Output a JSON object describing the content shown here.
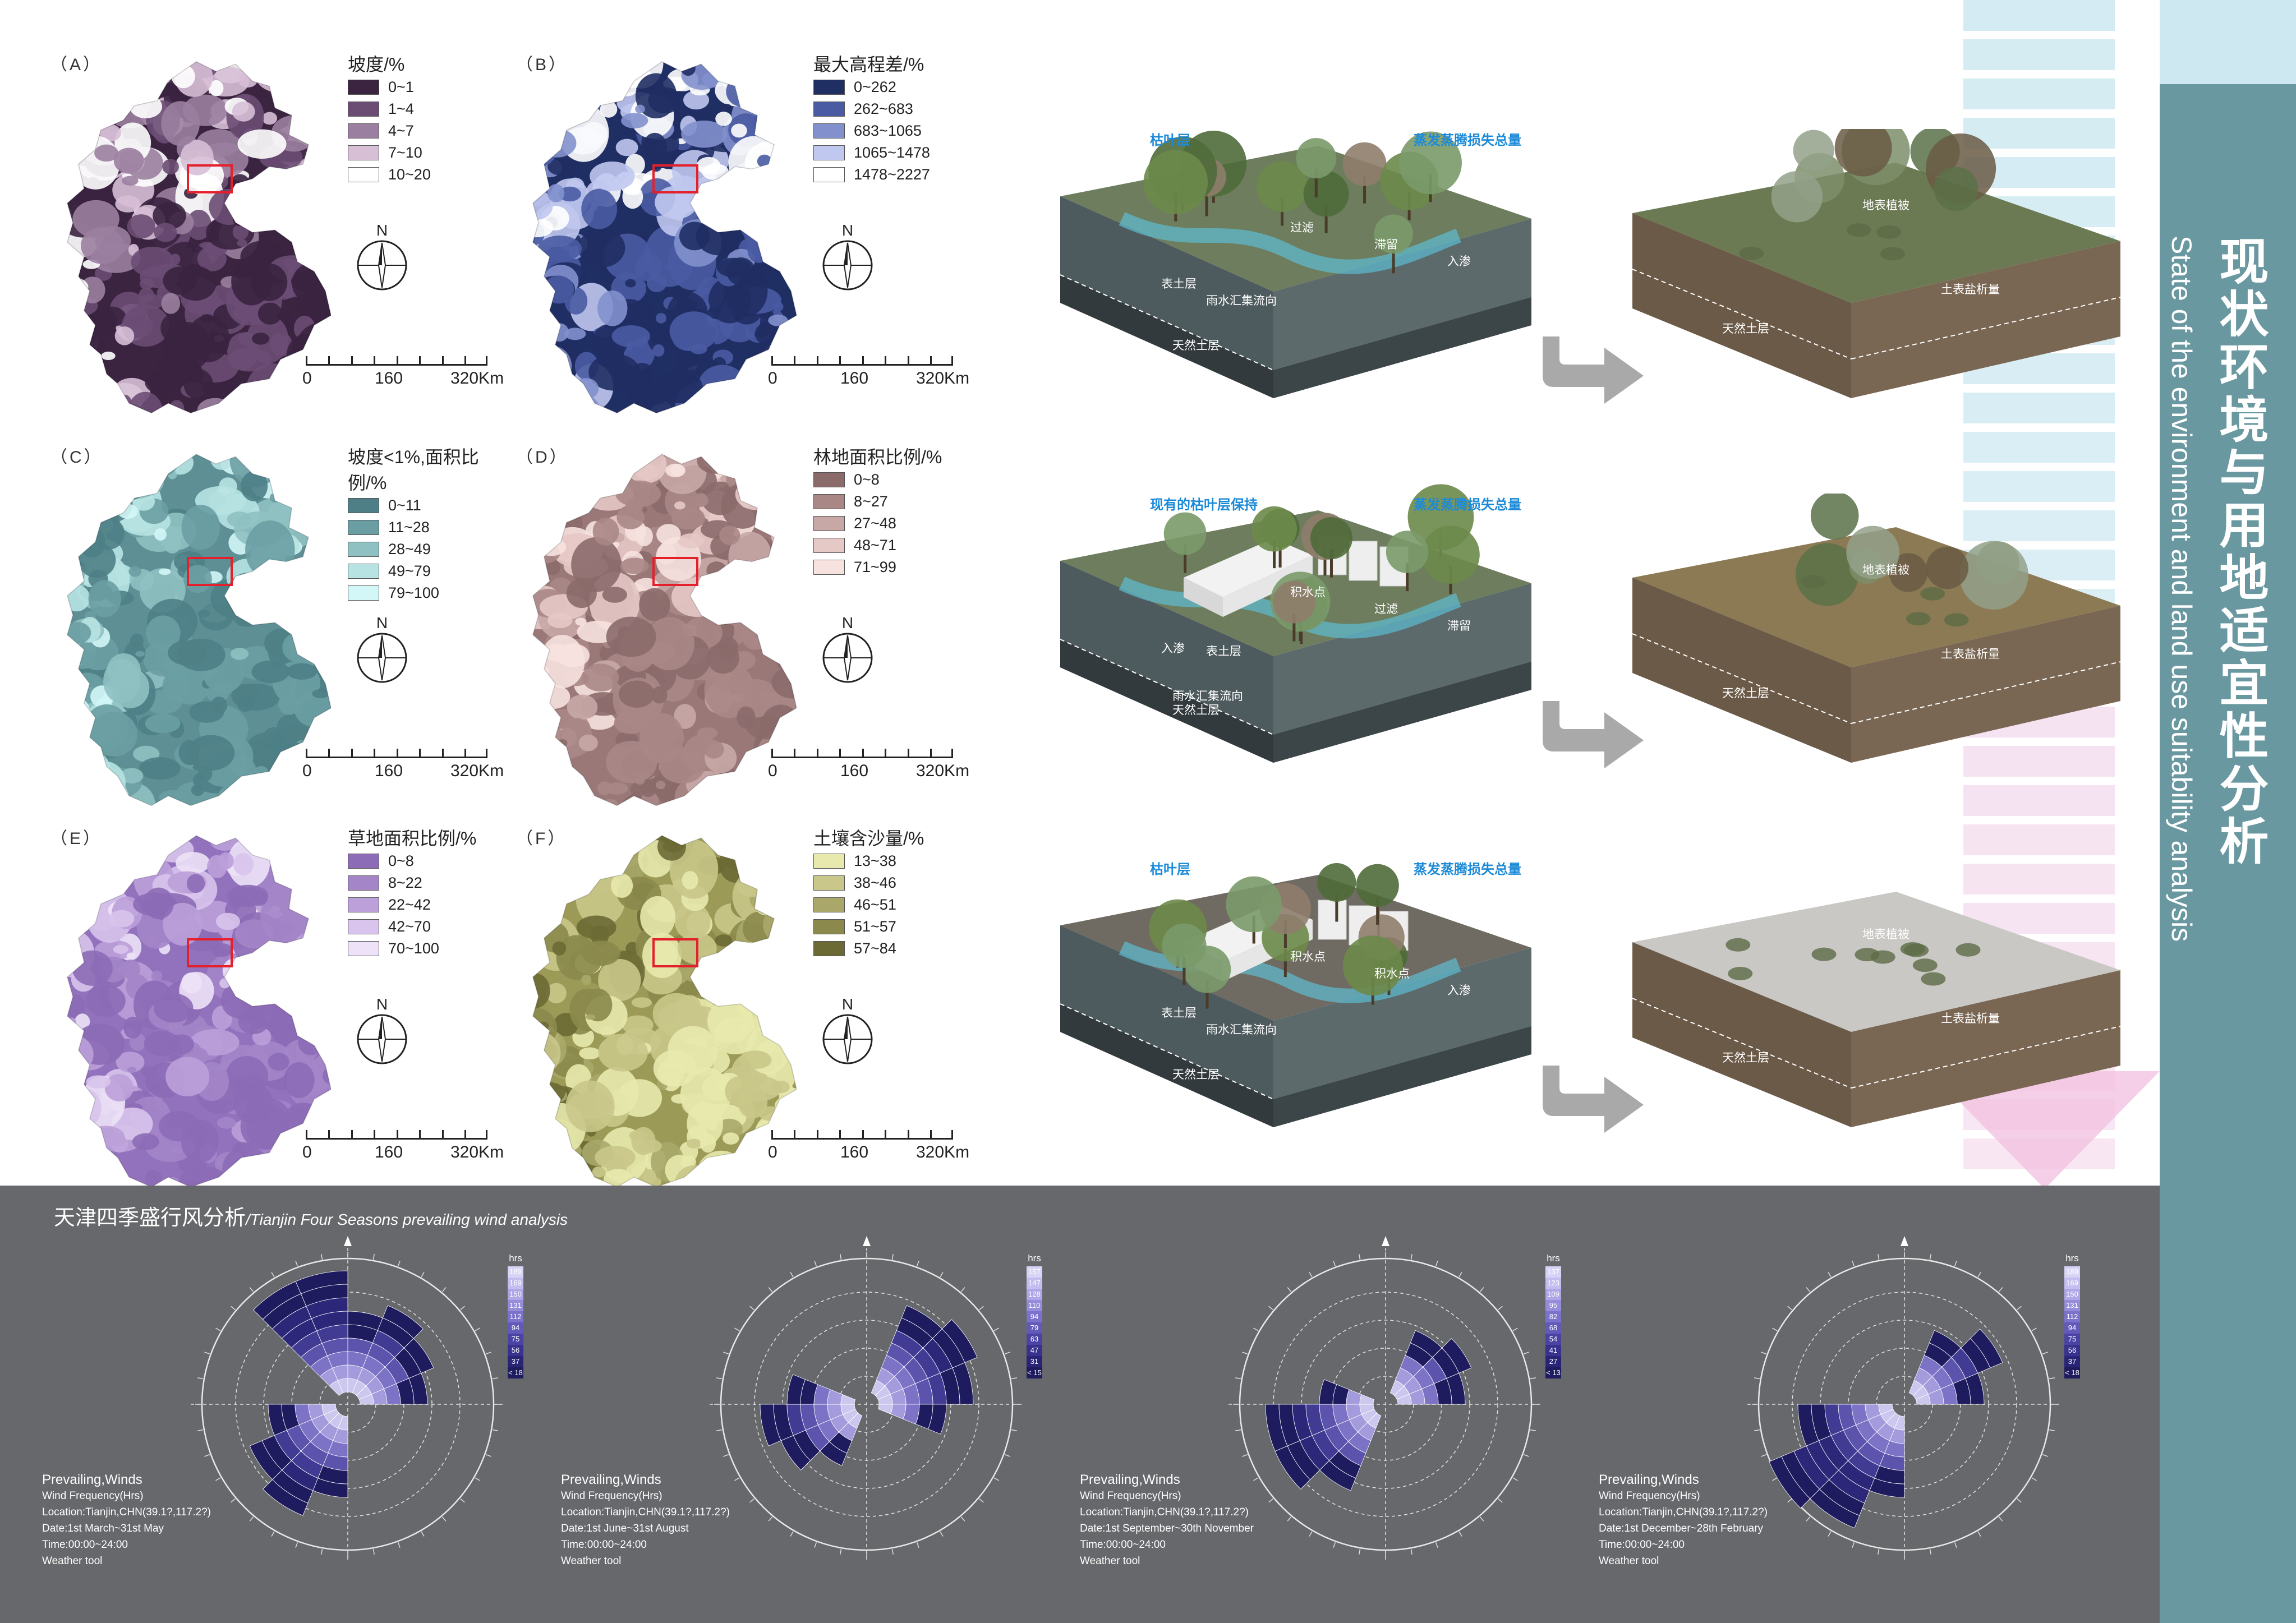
{
  "maps": [
    {
      "id": "A",
      "label": "（A）",
      "legend_title": "坡度/%",
      "classes": [
        "0~1",
        "1~4",
        "4~7",
        "7~10",
        "10~20"
      ],
      "colors": [
        "#3a2440",
        "#6b4d74",
        "#9b7fa0",
        "#d7bfd6",
        "#ffffff"
      ],
      "base": "#3a2440"
    },
    {
      "id": "B",
      "label": "（B）",
      "legend_title": "最大高程差/%",
      "classes": [
        "0~262",
        "262~683",
        "683~1065",
        "1065~1478",
        "1478~2227"
      ],
      "colors": [
        "#1f2e63",
        "#4a5ba3",
        "#8291cd",
        "#c0c8f0",
        "#ffffff"
      ],
      "base": "#1f2e63"
    },
    {
      "id": "C",
      "label": "（C）",
      "legend_title": "坡度<1%,面积比例/%",
      "classes": [
        "0~11",
        "11~28",
        "28~49",
        "49~79",
        "79~100"
      ],
      "colors": [
        "#4e7f86",
        "#6a9ea3",
        "#8fc1c2",
        "#b7e3e2",
        "#d3f6f7"
      ],
      "base": "#5d8f95"
    },
    {
      "id": "D",
      "label": "（D）",
      "legend_title": "林地面积比例/%",
      "classes": [
        "0~8",
        "8~27",
        "27~48",
        "48~71",
        "71~99"
      ],
      "colors": [
        "#8b6a6a",
        "#a88786",
        "#c8a8a6",
        "#e5c9c7",
        "#f7e2e0"
      ],
      "base": "#9a7878"
    },
    {
      "id": "E",
      "label": "（E）",
      "legend_title": "草地面积比例/%",
      "classes": [
        "0~8",
        "8~22",
        "22~42",
        "42~70",
        "70~100"
      ],
      "colors": [
        "#8c6cb6",
        "#a385c8",
        "#bba0d9",
        "#d8c4ec",
        "#ede2f7"
      ],
      "base": "#9272bd"
    },
    {
      "id": "F",
      "label": "（F）",
      "legend_title": "土壤含沙量/%",
      "classes": [
        "13~38",
        "38~46",
        "46~51",
        "51~57",
        "57~84"
      ],
      "colors": [
        "#e8e9ad",
        "#c9c88a",
        "#a9a86a",
        "#8b8a4c",
        "#6b6a35"
      ],
      "base": "#9c9a57"
    }
  ],
  "compass_letter": "N",
  "scale": [
    "0",
    "160",
    "320Km"
  ],
  "blocks": [
    {
      "left_labels": [
        "枯叶层",
        "蒸发蒸腾损失总量",
        "过滤",
        "滞留",
        "入渗",
        "表土层",
        "雨水汇集流向",
        "天然土层"
      ],
      "right_labels": [
        "地表植被",
        "天然土层",
        "土表盐析量"
      ]
    },
    {
      "left_labels": [
        "现有的枯叶层保持",
        "蒸发蒸腾损失总量",
        "积水点",
        "过滤",
        "滞留",
        "入渗",
        "表土层",
        "雨水汇集流向",
        "天然土层"
      ],
      "right_labels": [
        "地表植被",
        "天然土层",
        "土表盐析量"
      ]
    },
    {
      "left_labels": [
        "枯叶层",
        "蒸发蒸腾损失总量",
        "积水点",
        "积水点",
        "入渗",
        "表土层",
        "雨水汇集流向",
        "天然土层"
      ],
      "right_labels": [
        "地表植被",
        "天然土层",
        "土表盐析量"
      ]
    }
  ],
  "right_title": "现状环境与用地适宜性分析",
  "right_subtitle": "State of the environment and land use suitability analysis",
  "wind": {
    "title": "天津四季盛行风分析",
    "title_en": "/Tianjin Four Seasons prevailing wind analysis",
    "unit": "hrs",
    "roses": [
      {
        "heading": "Prevailing,Winds",
        "freq": "Wind Frequency(Hrs)",
        "loc": "Location:Tianjin,CHN(39.1?,117.2?)",
        "date": "Date:1st March~31st May",
        "time": "Time:00:00~24:00",
        "tool": "Weather tool",
        "scale": [
          "189",
          "169",
          "150",
          "131",
          "112",
          "94",
          "75",
          "56",
          "37",
          "< 18"
        ]
      },
      {
        "heading": "Prevailing,Winds",
        "freq": "Wind Frequency(Hrs)",
        "loc": "Location:Tianjin,CHN(39.1?,117.2?)",
        "date": "Date:1st June~31st August",
        "time": "Time:00:00~24:00",
        "tool": "Weather tool",
        "scale": [
          "157",
          "147",
          "128",
          "110",
          "94",
          "79",
          "63",
          "47",
          "31",
          "< 15"
        ]
      },
      {
        "heading": "Prevailing,Winds",
        "freq": "Wind Frequency(Hrs)",
        "loc": "Location:Tianjin,CHN(39.1?,117.2?)",
        "date": "Date:1st September~30th November",
        "time": "Time:00:00~24:00",
        "tool": "Weather tool",
        "scale": [
          "137",
          "123",
          "109",
          "95",
          "82",
          "68",
          "54",
          "41",
          "27",
          "< 13"
        ]
      },
      {
        "heading": "Prevailing,Winds",
        "freq": "Wind Frequency(Hrs)",
        "loc": "Location:Tianjin,CHN(39.1?,117.2?)",
        "date": "Date:1st December~28th February",
        "time": "Time:00:00~24:00",
        "tool": "Weather tool",
        "scale": [
          "189",
          "169",
          "150",
          "131",
          "112",
          "94",
          "75",
          "56",
          "37",
          "< 18"
        ]
      }
    ]
  },
  "colors": {
    "panel": "#67686b",
    "rose": "#1e1b5e",
    "accent_teal": "#6a98a1",
    "arrow": "#a9a9a9",
    "stripe_blue": "#cde8f1",
    "stripe_pink": "#f2d5ea"
  }
}
